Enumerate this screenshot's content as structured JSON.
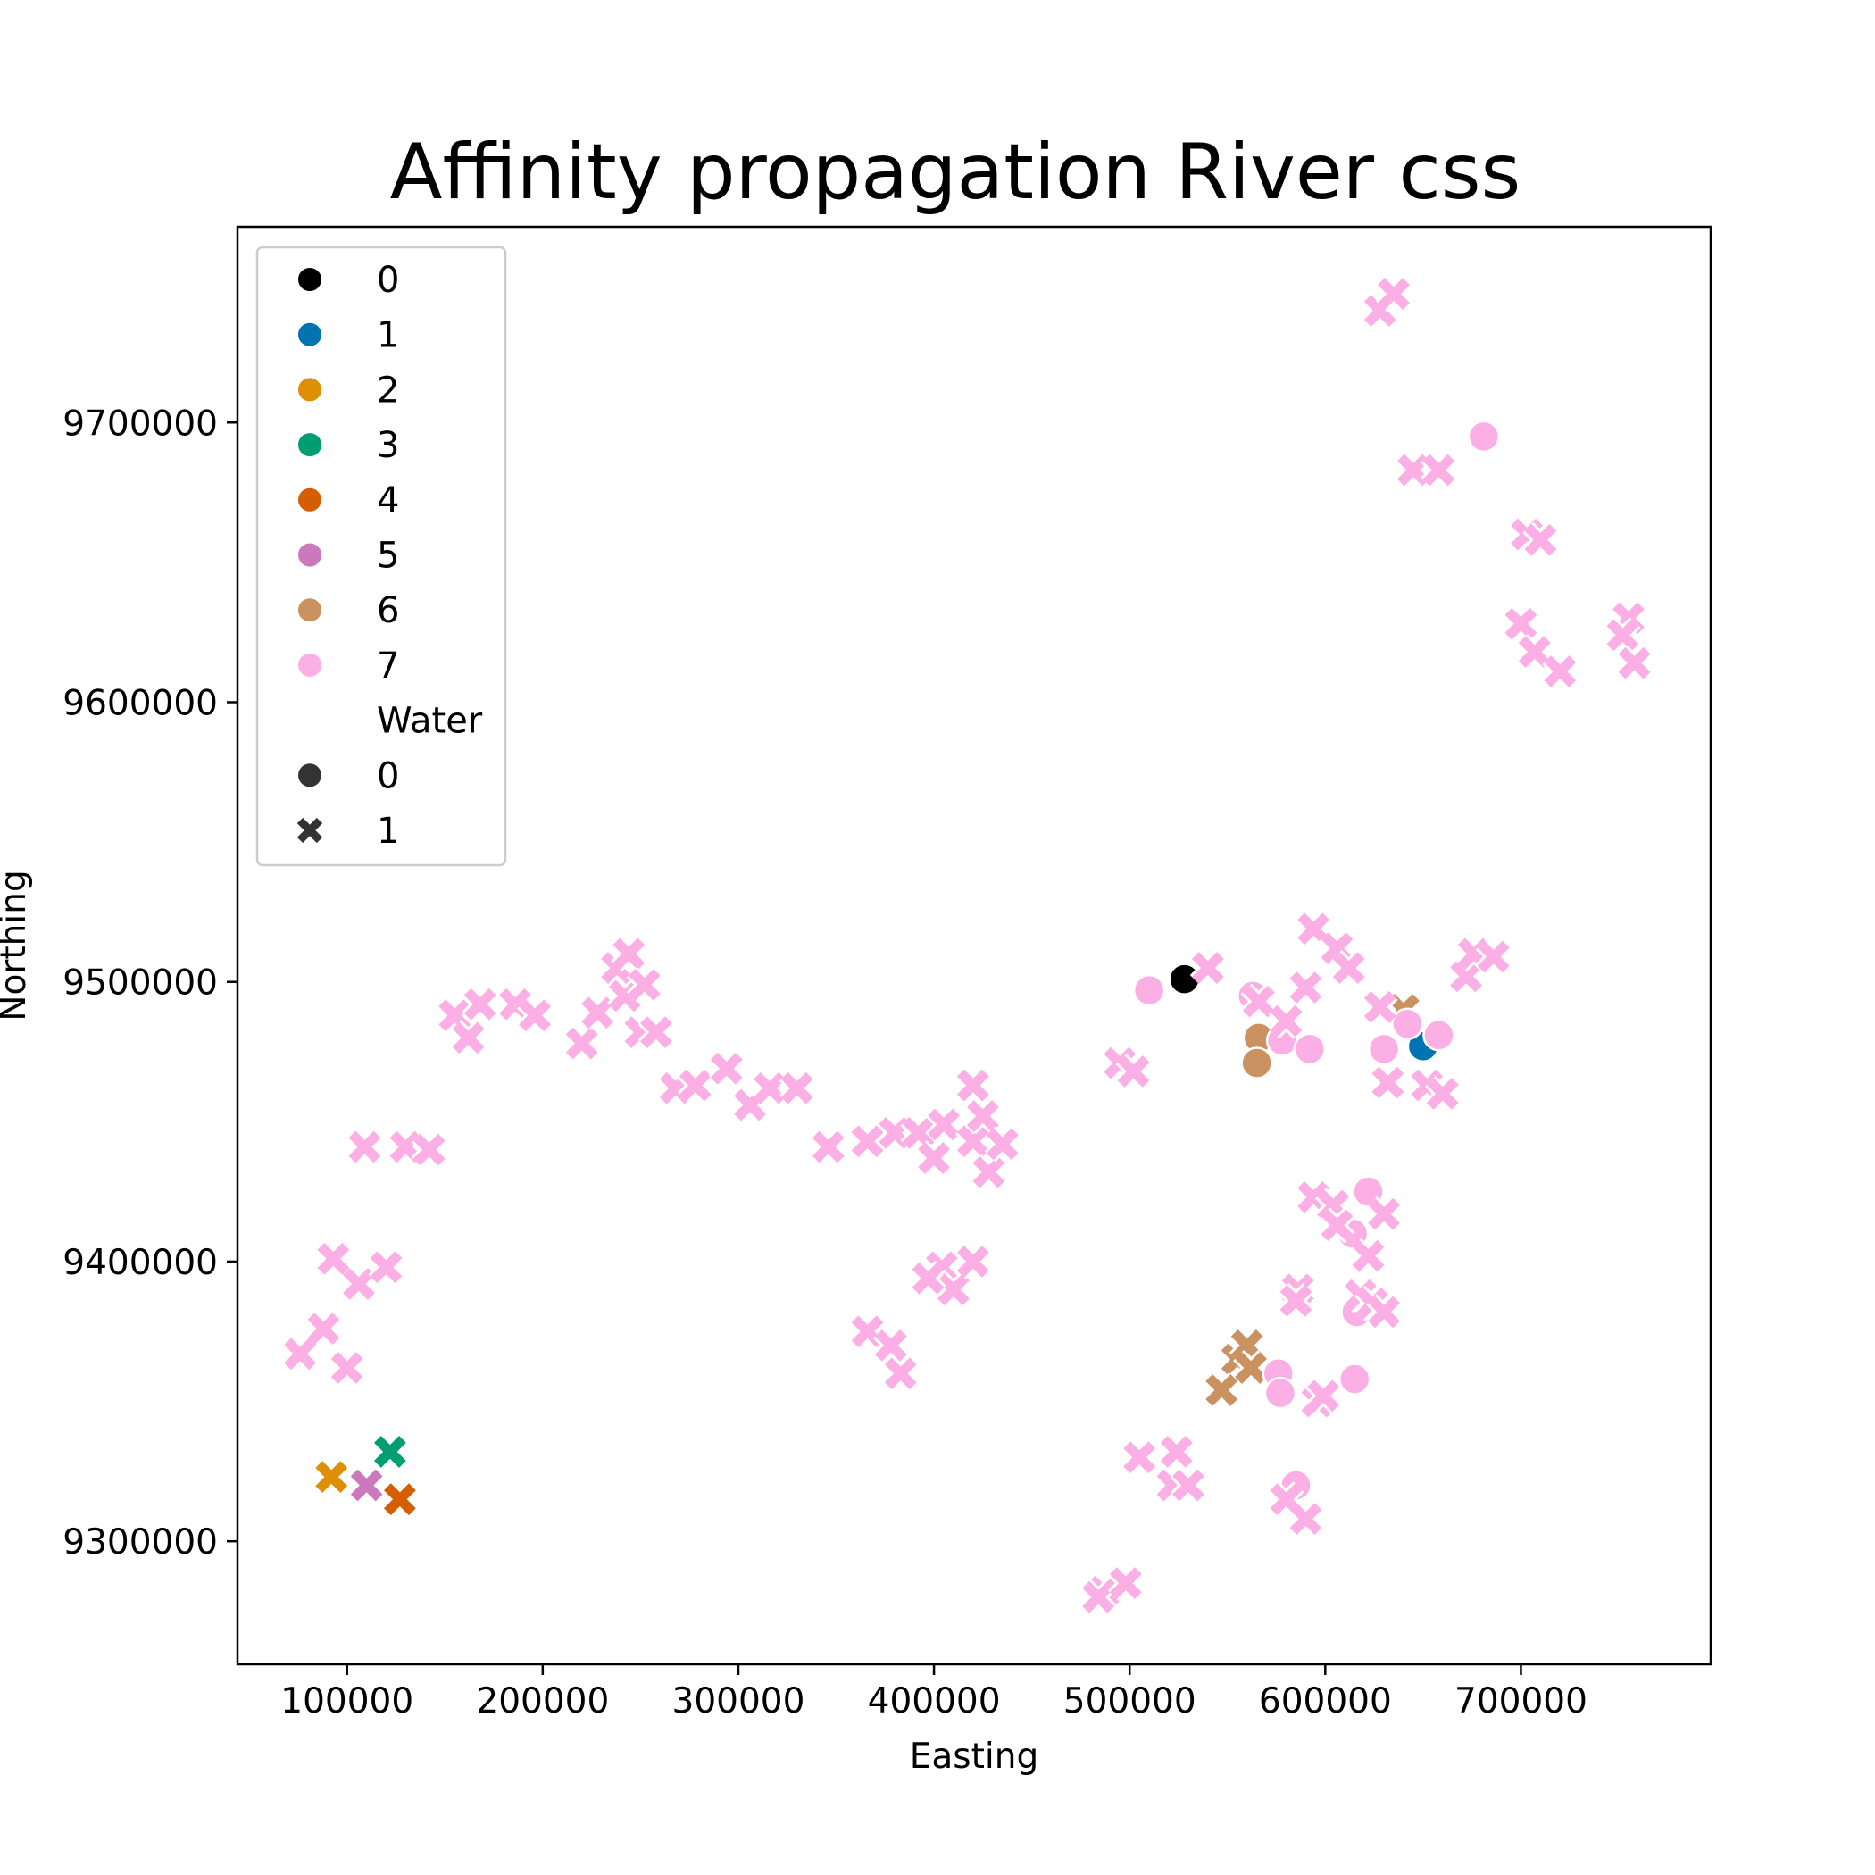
{
  "chart_data": {
    "type": "scatter",
    "title": "Affinity propagation River css",
    "xlabel": "Easting",
    "ylabel": "Northing",
    "xlim": [
      44000,
      797000
    ],
    "ylim": [
      9256000,
      9770000
    ],
    "xticks": [
      100000,
      200000,
      300000,
      400000,
      500000,
      600000,
      700000
    ],
    "yticks": [
      9300000,
      9400000,
      9500000,
      9600000,
      9700000
    ],
    "grid": false,
    "legend_position": "top-left",
    "hue_title": "",
    "hue_levels": [
      {
        "label": "0",
        "color": "#000000"
      },
      {
        "label": "1",
        "color": "#0173b2"
      },
      {
        "label": "2",
        "color": "#de8f05"
      },
      {
        "label": "3",
        "color": "#029e73"
      },
      {
        "label": "4",
        "color": "#d55e00"
      },
      {
        "label": "5",
        "color": "#cc78bc"
      },
      {
        "label": "6",
        "color": "#ca9161"
      },
      {
        "label": "7",
        "color": "#fbafe4"
      }
    ],
    "style_title": "Water",
    "style_levels": [
      {
        "label": "0",
        "marker": "circle"
      },
      {
        "label": "1",
        "marker": "x"
      }
    ],
    "points": [
      [
        528000,
        9501000,
        0,
        0
      ],
      [
        650000,
        9477000,
        1,
        0
      ],
      [
        92000,
        9323000,
        2,
        1
      ],
      [
        122000,
        9332000,
        3,
        1
      ],
      [
        127000,
        9315000,
        4,
        1
      ],
      [
        110000,
        9320000,
        5,
        1
      ],
      [
        566000,
        9480000,
        6,
        0
      ],
      [
        565000,
        9471000,
        6,
        0
      ],
      [
        640000,
        9490000,
        6,
        1
      ],
      [
        555000,
        9365000,
        6,
        1
      ],
      [
        560000,
        9370000,
        6,
        1
      ],
      [
        562000,
        9362000,
        6,
        1
      ],
      [
        547000,
        9354000,
        6,
        1
      ],
      [
        681000,
        9695000,
        7,
        0
      ],
      [
        510000,
        9497000,
        7,
        0
      ],
      [
        563000,
        9495000,
        7,
        0
      ],
      [
        578000,
        9479000,
        7,
        0
      ],
      [
        592000,
        9476000,
        7,
        0
      ],
      [
        630000,
        9476000,
        7,
        0
      ],
      [
        642000,
        9485000,
        7,
        0
      ],
      [
        658000,
        9481000,
        7,
        0
      ],
      [
        622000,
        9425000,
        7,
        0
      ],
      [
        614000,
        9410000,
        7,
        0
      ],
      [
        616000,
        9382000,
        7,
        0
      ],
      [
        576000,
        9360000,
        7,
        0
      ],
      [
        577000,
        9353000,
        7,
        0
      ],
      [
        615000,
        9358000,
        7,
        0
      ],
      [
        585000,
        9320000,
        7,
        0
      ],
      [
        628000,
        9740000,
        7,
        1
      ],
      [
        635000,
        9746000,
        7,
        1
      ],
      [
        645000,
        9683000,
        7,
        1
      ],
      [
        658000,
        9683000,
        7,
        1
      ],
      [
        703000,
        9660000,
        7,
        1
      ],
      [
        710000,
        9658000,
        7,
        1
      ],
      [
        700000,
        9628000,
        7,
        1
      ],
      [
        707000,
        9618000,
        7,
        1
      ],
      [
        720000,
        9611000,
        7,
        1
      ],
      [
        755000,
        9630000,
        7,
        1
      ],
      [
        752000,
        9624000,
        7,
        1
      ],
      [
        758000,
        9614000,
        7,
        1
      ],
      [
        594000,
        9519000,
        7,
        1
      ],
      [
        606000,
        9512000,
        7,
        1
      ],
      [
        612000,
        9505000,
        7,
        1
      ],
      [
        540000,
        9505000,
        7,
        1
      ],
      [
        566000,
        9493000,
        7,
        1
      ],
      [
        580000,
        9486000,
        7,
        1
      ],
      [
        590000,
        9498000,
        7,
        1
      ],
      [
        628000,
        9491000,
        7,
        1
      ],
      [
        632000,
        9464000,
        7,
        1
      ],
      [
        652000,
        9463000,
        7,
        1
      ],
      [
        660000,
        9460000,
        7,
        1
      ],
      [
        672000,
        9502000,
        7,
        1
      ],
      [
        676000,
        9510000,
        7,
        1
      ],
      [
        686000,
        9509000,
        7,
        1
      ],
      [
        495000,
        9471000,
        7,
        1
      ],
      [
        502000,
        9468000,
        7,
        1
      ],
      [
        594000,
        9423000,
        7,
        1
      ],
      [
        604000,
        9420000,
        7,
        1
      ],
      [
        606000,
        9413000,
        7,
        1
      ],
      [
        630000,
        9417000,
        7,
        1
      ],
      [
        622000,
        9402000,
        7,
        1
      ],
      [
        586000,
        9390000,
        7,
        1
      ],
      [
        585000,
        9386000,
        7,
        1
      ],
      [
        618000,
        9388000,
        7,
        1
      ],
      [
        624000,
        9385000,
        7,
        1
      ],
      [
        630000,
        9382000,
        7,
        1
      ],
      [
        596000,
        9350000,
        7,
        1
      ],
      [
        599000,
        9352000,
        7,
        1
      ],
      [
        505000,
        9330000,
        7,
        1
      ],
      [
        522000,
        9320000,
        7,
        1
      ],
      [
        524000,
        9332000,
        7,
        1
      ],
      [
        530000,
        9320000,
        7,
        1
      ],
      [
        580000,
        9315000,
        7,
        1
      ],
      [
        590000,
        9308000,
        7,
        1
      ],
      [
        487000,
        9282000,
        7,
        1
      ],
      [
        484000,
        9280000,
        7,
        1
      ],
      [
        498000,
        9285000,
        7,
        1
      ],
      [
        155000,
        9488000,
        7,
        1
      ],
      [
        162000,
        9480000,
        7,
        1
      ],
      [
        168000,
        9492000,
        7,
        1
      ],
      [
        186000,
        9492000,
        7,
        1
      ],
      [
        196000,
        9488000,
        7,
        1
      ],
      [
        220000,
        9478000,
        7,
        1
      ],
      [
        228000,
        9489000,
        7,
        1
      ],
      [
        238000,
        9505000,
        7,
        1
      ],
      [
        244000,
        9510000,
        7,
        1
      ],
      [
        242000,
        9495000,
        7,
        1
      ],
      [
        252000,
        9499000,
        7,
        1
      ],
      [
        250000,
        9482000,
        7,
        1
      ],
      [
        258000,
        9482000,
        7,
        1
      ],
      [
        268000,
        9462000,
        7,
        1
      ],
      [
        278000,
        9463000,
        7,
        1
      ],
      [
        294000,
        9469000,
        7,
        1
      ],
      [
        306000,
        9456000,
        7,
        1
      ],
      [
        316000,
        9462000,
        7,
        1
      ],
      [
        330000,
        9462000,
        7,
        1
      ],
      [
        109000,
        9441000,
        7,
        1
      ],
      [
        130000,
        9441000,
        7,
        1
      ],
      [
        142000,
        9440000,
        7,
        1
      ],
      [
        346000,
        9441000,
        7,
        1
      ],
      [
        366000,
        9443000,
        7,
        1
      ],
      [
        380000,
        9446000,
        7,
        1
      ],
      [
        392000,
        9446000,
        7,
        1
      ],
      [
        400000,
        9437000,
        7,
        1
      ],
      [
        405000,
        9449000,
        7,
        1
      ],
      [
        420000,
        9463000,
        7,
        1
      ],
      [
        420000,
        9443000,
        7,
        1
      ],
      [
        425000,
        9452000,
        7,
        1
      ],
      [
        428000,
        9432000,
        7,
        1
      ],
      [
        435000,
        9442000,
        7,
        1
      ],
      [
        404000,
        9398000,
        7,
        1
      ],
      [
        410000,
        9390000,
        7,
        1
      ],
      [
        397000,
        9394000,
        7,
        1
      ],
      [
        420000,
        9400000,
        7,
        1
      ],
      [
        366000,
        9375000,
        7,
        1
      ],
      [
        378000,
        9370000,
        7,
        1
      ],
      [
        383000,
        9360000,
        7,
        1
      ],
      [
        93000,
        9401000,
        7,
        1
      ],
      [
        106000,
        9392000,
        7,
        1
      ],
      [
        120000,
        9398000,
        7,
        1
      ],
      [
        88000,
        9376000,
        7,
        1
      ],
      [
        76000,
        9367000,
        7,
        1
      ],
      [
        100000,
        9362000,
        7,
        1
      ]
    ]
  }
}
